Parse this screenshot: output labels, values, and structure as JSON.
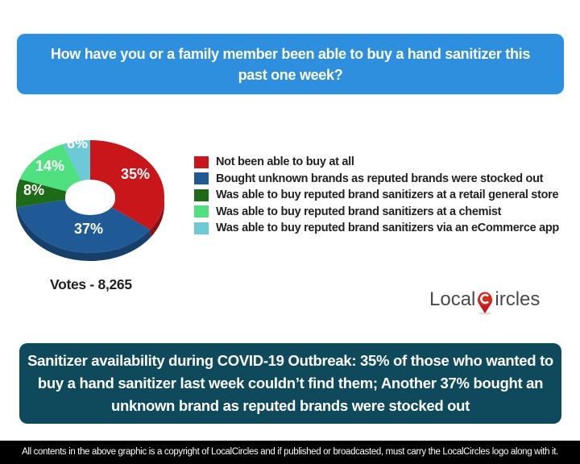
{
  "header": {
    "question": "How have you or a family member been able to buy a hand sanitizer this past one week?"
  },
  "chart_data": {
    "type": "pie",
    "style": "3d-donut",
    "title": "How have you or a family member been able to buy a hand sanitizer this past one week?",
    "categories": [
      "Not been able to buy at all",
      "Bought unknown brands as reputed brands were stocked out",
      "Was able to buy reputed brand sanitizers at a retail general store",
      "Was able to buy reputed brand sanitizers at a chemist",
      "Was able to buy reputed brand sanitizers via an eCommerce app"
    ],
    "values": [
      35,
      37,
      8,
      14,
      6
    ],
    "value_labels": [
      "35%",
      "37%",
      "8%",
      "14%",
      "6%"
    ],
    "colors": [
      "#c8161b",
      "#1f5a96",
      "#1e6b17",
      "#4fe07f",
      "#6bcad6"
    ],
    "legend_position": "right",
    "total_votes": "8,265"
  },
  "legend": {
    "items": [
      {
        "label": "Not been able to buy at all",
        "color": "#c8161b"
      },
      {
        "label": "Bought unknown brands as reputed brands were stocked out",
        "color": "#1f5a96"
      },
      {
        "label": "Was able to buy reputed brand sanitizers at a retail general store",
        "color": "#1e6b17"
      },
      {
        "label": "Was able to buy reputed brand sanitizers at a chemist",
        "color": "#4fe07f"
      },
      {
        "label": "Was able to buy reputed brand sanitizers via an eCommerce app",
        "color": "#6bcad6"
      }
    ]
  },
  "votes": {
    "label": "Votes - 8,265"
  },
  "logo": {
    "part1": "Local",
    "part2": "ircles"
  },
  "summary": {
    "text": "Sanitizer availability during COVID-19 Outbreak: 35% of those who wanted to buy a hand sanitizer last week couldn’t find them; Another 37% bought an unknown brand as reputed brands were stocked out"
  },
  "footer": {
    "text": "All contents in the above graphic is a copyright of LocalCircles and if published or broadcasted, must carry the LocalCircles logo along with it."
  }
}
